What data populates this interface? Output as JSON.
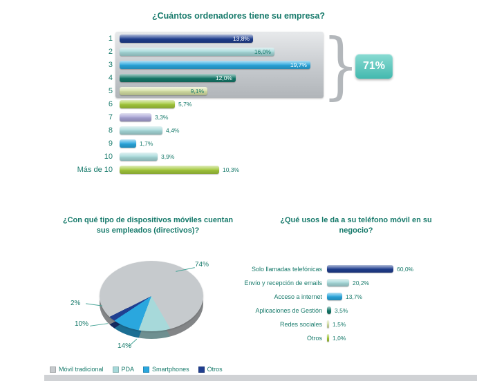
{
  "palette": {
    "navy": "#203f90",
    "cyan": "#a7d9da",
    "blue": "#2aa7de",
    "darkteal": "#15796a",
    "paleolive": "#d5e0a5",
    "green": "#a4c93c",
    "lavender": "#a8a4d5",
    "gray": "#c6cacd",
    "badge_teal": "#4fc2b8",
    "titleColor": "#177a6b"
  },
  "chart_data": [
    {
      "type": "bar",
      "title": "¿Cuántos ordenadores tiene su empresa?",
      "orientation": "horizontal",
      "unit": "%",
      "xlim": [
        0,
        20
      ],
      "rows": [
        {
          "category": "1",
          "value": 13.8,
          "display": "13,8%",
          "color": "navy",
          "text": "light",
          "value_inside": true
        },
        {
          "category": "2",
          "value": 16.0,
          "display": "16,0%",
          "color": "cyan",
          "text": "dark",
          "value_inside": true
        },
        {
          "category": "3",
          "value": 19.7,
          "display": "19,7%",
          "color": "blue",
          "text": "light",
          "value_inside": true
        },
        {
          "category": "4",
          "value": 12.0,
          "display": "12,0%",
          "color": "darkteal",
          "text": "light",
          "value_inside": true
        },
        {
          "category": "5",
          "value": 9.1,
          "display": "9,1%",
          "color": "paleolive",
          "text": "dark",
          "value_inside": true
        },
        {
          "category": "6",
          "value": 5.7,
          "display": "5,7%",
          "color": "green",
          "text": "dark",
          "value_inside": false
        },
        {
          "category": "7",
          "value": 3.3,
          "display": "3,3%",
          "color": "lavender",
          "text": "dark",
          "value_inside": false
        },
        {
          "category": "8",
          "value": 4.4,
          "display": "4,4%",
          "color": "cyan",
          "text": "dark",
          "value_inside": false
        },
        {
          "category": "9",
          "value": 1.7,
          "display": "1,7%",
          "color": "blue",
          "text": "dark",
          "value_inside": false
        },
        {
          "category": "10",
          "value": 3.9,
          "display": "3,9%",
          "color": "cyan",
          "text": "dark",
          "value_inside": false
        },
        {
          "category": "Más de 10",
          "value": 10.3,
          "display": "10,3%",
          "color": "green",
          "text": "dark",
          "value_inside": false
        }
      ],
      "highlight_group": {
        "row_categories": [
          "1",
          "2",
          "3",
          "4",
          "5"
        ],
        "label": "71%",
        "brace_glyph": "}"
      }
    },
    {
      "type": "pie",
      "title": "¿Con qué tipo de dispositivos móviles cuentan sus empleados (directivos)?",
      "slices": [
        {
          "label": "Móvil tradicional",
          "value": 74,
          "display": "74%",
          "color": "gray"
        },
        {
          "label": "PDA",
          "value": 14,
          "display": "14%",
          "color": "cyan"
        },
        {
          "label": "Smartphones",
          "value": 10,
          "display": "10%",
          "color": "blue"
        },
        {
          "label": "Otros",
          "value": 2,
          "display": "2%",
          "color": "navy"
        }
      ],
      "legend_position": "bottom"
    },
    {
      "type": "bar",
      "title": "¿Qué usos le da a su teléfono móvil en su negocio?",
      "orientation": "horizontal",
      "unit": "%",
      "xlim": [
        0,
        65
      ],
      "rows": [
        {
          "label": "Solo llamadas telefónicas",
          "value": 60.0,
          "display": "60,0%",
          "color": "navy"
        },
        {
          "label": "Envío y recepción de emails",
          "value": 20.2,
          "display": "20,2%",
          "color": "cyan"
        },
        {
          "label": "Acceso a internet",
          "value": 13.7,
          "display": "13,7%",
          "color": "blue"
        },
        {
          "label": "Aplicaciones de Gestión",
          "value": 3.5,
          "display": "3,5%",
          "color": "darkteal"
        },
        {
          "label": "Redes sociales",
          "value": 1.5,
          "display": "1,5%",
          "color": "paleolive"
        },
        {
          "label": "Otros",
          "value": 1.0,
          "display": "1,0%",
          "color": "green"
        }
      ]
    }
  ]
}
